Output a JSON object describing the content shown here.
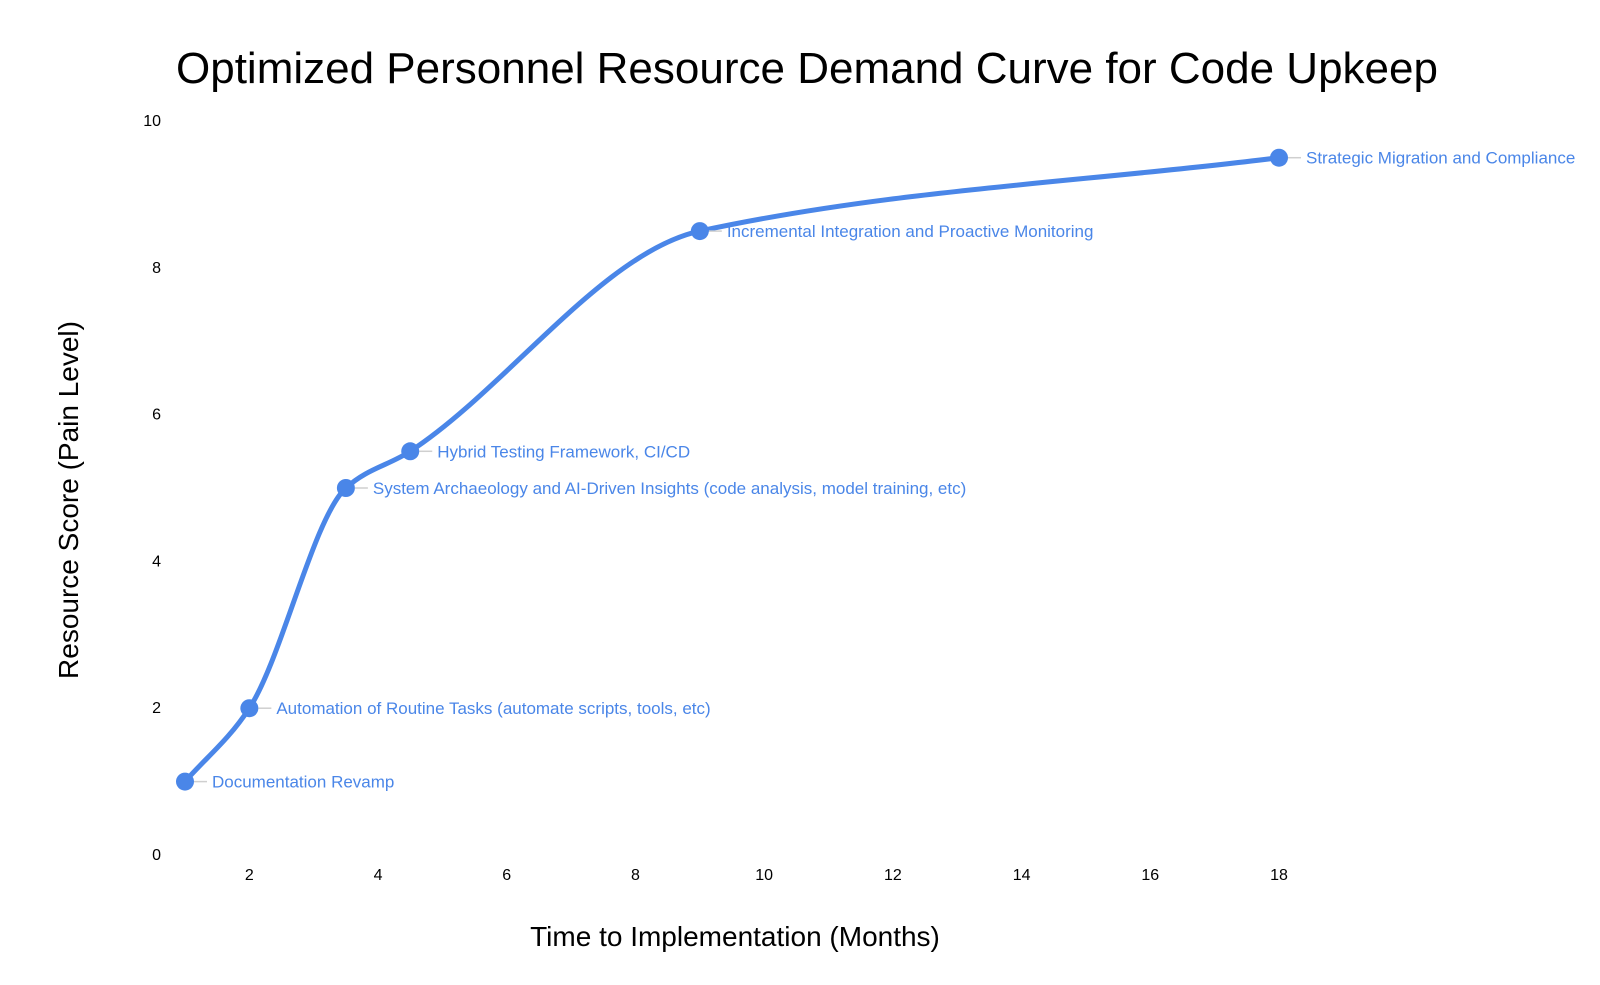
{
  "colors": {
    "series": "#4a86e8",
    "leader": "#cfcfcf",
    "background": "#ffffff"
  },
  "chart_data": {
    "type": "line",
    "title": "Optimized Personnel Resource Demand Curve for Code Upkeep",
    "xlabel": "Time to Implementation (Months)",
    "ylabel": "Resource Score (Pain Level)",
    "xlim": [
      1,
      18
    ],
    "ylim": [
      0,
      10
    ],
    "xticks": [
      2,
      4,
      6,
      8,
      10,
      12,
      14,
      16,
      18
    ],
    "yticks": [
      0,
      2,
      4,
      6,
      8,
      10
    ],
    "grid": false,
    "smooth": true,
    "series": [
      {
        "name": "Resource Score",
        "points": [
          {
            "x": 1,
            "y": 1,
            "label": "Documentation Revamp"
          },
          {
            "x": 2,
            "y": 2,
            "label": "Automation of Routine Tasks (automate scripts, tools, etc)"
          },
          {
            "x": 3.5,
            "y": 5,
            "label": "System Archaeology and AI-Driven Insights (code analysis, model training, etc)"
          },
          {
            "x": 4.5,
            "y": 5.5,
            "label": "Hybrid Testing Framework, CI/CD"
          },
          {
            "x": 9,
            "y": 8.5,
            "label": "Incremental Integration and Proactive Monitoring"
          },
          {
            "x": 18,
            "y": 9.5,
            "label": "Strategic Migration and Compliance"
          }
        ]
      }
    ]
  }
}
